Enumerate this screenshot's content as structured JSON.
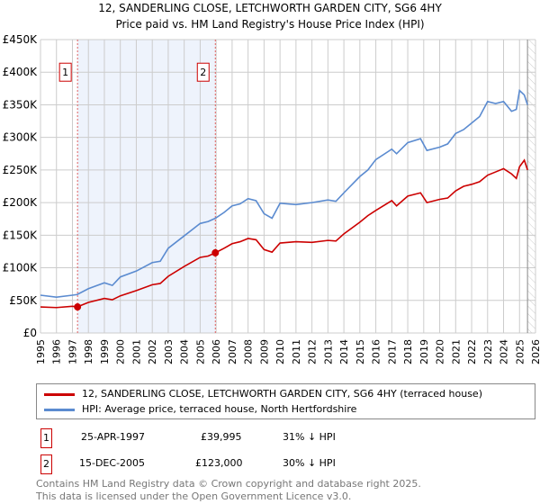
{
  "chart_data": {
    "type": "line",
    "title": "12, SANDERLING CLOSE, LETCHWORTH GARDEN CITY, SG6 4HY",
    "subtitle": "Price paid vs. HM Land Registry's House Price Index (HPI)",
    "xlim": [
      1995,
      2026
    ],
    "ylim": [
      0,
      450000
    ],
    "yticks": [
      0,
      50000,
      100000,
      150000,
      200000,
      250000,
      300000,
      350000,
      400000,
      450000
    ],
    "ytick_labels": [
      "£0",
      "£50K",
      "£100K",
      "£150K",
      "£200K",
      "£250K",
      "£300K",
      "£350K",
      "£400K",
      "£450K"
    ],
    "xticks": [
      "1995",
      "1996",
      "1997",
      "1998",
      "1999",
      "2000",
      "2001",
      "2002",
      "2003",
      "2004",
      "2005",
      "2006",
      "2007",
      "2008",
      "2009",
      "2010",
      "2011",
      "2012",
      "2013",
      "2014",
      "2015",
      "2016",
      "2017",
      "2018",
      "2019",
      "2020",
      "2021",
      "2022",
      "2023",
      "2024",
      "2025",
      "2026"
    ],
    "grid": true,
    "legend_placement": "below",
    "series": [
      {
        "name": "12, SANDERLING CLOSE, LETCHWORTH GARDEN CITY, SG6 4HY (terraced house)",
        "color": "#cc0000",
        "x": [
          1995,
          1996,
          1997,
          1997.3,
          1998,
          1999,
          1999.5,
          2000,
          2001,
          2002,
          2002.5,
          2003,
          2004,
          2005,
          2005.5,
          2005.95,
          2006.5,
          2007,
          2007.5,
          2008,
          2008.5,
          2009,
          2009.5,
          2010,
          2011,
          2012,
          2013,
          2013.5,
          2014,
          2015,
          2015.5,
          2016,
          2017,
          2017.3,
          2018,
          2018.8,
          2019.2,
          2020,
          2020.5,
          2021,
          2021.5,
          2022,
          2022.5,
          2023,
          2023.5,
          2024,
          2024.5,
          2024.8,
          2025,
          2025.3,
          2025.5
        ],
        "y": [
          40000,
          39000,
          41000,
          39995,
          47000,
          53000,
          51000,
          57000,
          65000,
          74000,
          76000,
          87000,
          102000,
          116000,
          118000,
          123000,
          130000,
          137000,
          140000,
          145000,
          143000,
          128000,
          124000,
          138000,
          140000,
          139000,
          142000,
          141000,
          152000,
          170000,
          180000,
          188000,
          203000,
          195000,
          210000,
          215000,
          200000,
          205000,
          207000,
          218000,
          225000,
          228000,
          232000,
          242000,
          247000,
          252000,
          244000,
          237000,
          255000,
          265000,
          250000
        ]
      },
      {
        "name": "HPI: Average price, terraced house, North Hertfordshire",
        "color": "#5b8bd0",
        "x": [
          1995,
          1996,
          1997,
          1997.3,
          1998,
          1999,
          1999.5,
          2000,
          2001,
          2002,
          2002.5,
          2003,
          2004,
          2005,
          2005.5,
          2005.95,
          2006.5,
          2007,
          2007.5,
          2008,
          2008.5,
          2009,
          2009.5,
          2010,
          2011,
          2012,
          2013,
          2013.5,
          2014,
          2015,
          2015.5,
          2016,
          2017,
          2017.3,
          2018,
          2018.8,
          2019.2,
          2020,
          2020.5,
          2021,
          2021.5,
          2022,
          2022.5,
          2023,
          2023.5,
          2024,
          2024.5,
          2024.8,
          2025,
          2025.3,
          2025.5
        ],
        "y": [
          58000,
          55000,
          58000,
          59000,
          68000,
          77000,
          73000,
          86000,
          95000,
          108000,
          110000,
          130000,
          149000,
          168000,
          171000,
          176000,
          185000,
          195000,
          198000,
          206000,
          203000,
          183000,
          176000,
          199000,
          197000,
          200000,
          204000,
          202000,
          215000,
          240000,
          250000,
          266000,
          282000,
          275000,
          292000,
          298000,
          280000,
          285000,
          290000,
          306000,
          312000,
          322000,
          332000,
          355000,
          352000,
          355000,
          340000,
          343000,
          372000,
          365000,
          350000
        ]
      }
    ],
    "sales": [
      {
        "label": "1",
        "date": "25-APR-1997",
        "x": 1997.32,
        "price": "£39,995",
        "value": 39995,
        "hpi": "31% ↓ HPI"
      },
      {
        "label": "2",
        "date": "15-DEC-2005",
        "x": 2005.95,
        "price": "£123,000",
        "value": 123000,
        "hpi": "30% ↓ HPI"
      }
    ],
    "forecast_start": 2025.5,
    "colors": {
      "shade": "#eef3fc",
      "marker": "#cc0000",
      "grid": "#cccccc"
    }
  },
  "footer": {
    "line1": "Contains HM Land Registry data © Crown copyright and database right 2025.",
    "line2": "This data is licensed under the Open Government Licence v3.0."
  }
}
